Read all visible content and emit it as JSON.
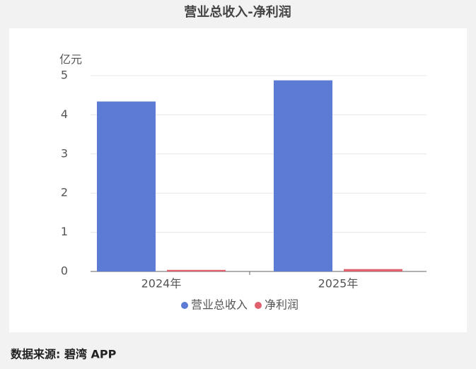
{
  "chart_data": {
    "type": "bar",
    "title": "营业总收入-净利润",
    "y_label": "亿元",
    "categories": [
      "2024年",
      "2025年"
    ],
    "series": [
      {
        "name": "营业总收入",
        "color": "#5b7bd5",
        "values": [
          4.34,
          4.88
        ]
      },
      {
        "name": "净利润",
        "color": "#e0606e",
        "values": [
          0.04,
          0.06
        ]
      }
    ],
    "ylim": [
      0,
      5
    ],
    "yticks": [
      0,
      1,
      2,
      3,
      4,
      5
    ],
    "grid": true,
    "legend": "bottom",
    "source": "数据来源: 碧湾 APP"
  }
}
